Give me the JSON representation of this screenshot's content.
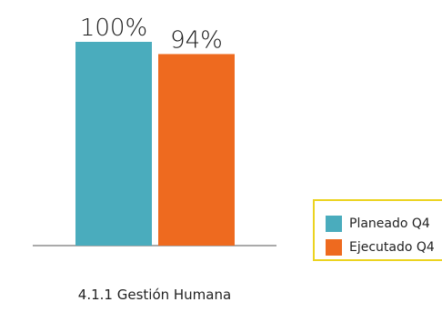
{
  "chart_data": {
    "type": "bar",
    "categories": [
      "4.1.1 Gestión Humana"
    ],
    "series": [
      {
        "name": "Planeado Q4",
        "values": [
          100
        ],
        "label": "100%",
        "color": "#4aacbd"
      },
      {
        "name": "Ejecutado Q4",
        "values": [
          94
        ],
        "label": "94%",
        "color": "#ee6a1f"
      }
    ],
    "ylim": [
      0,
      100
    ],
    "grid": false,
    "legend_position": "right"
  }
}
